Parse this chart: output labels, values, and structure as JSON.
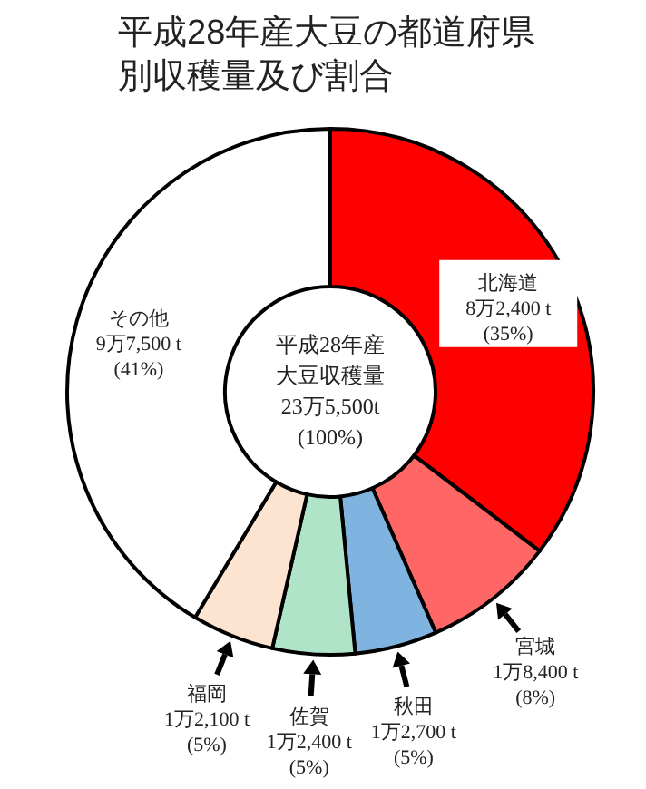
{
  "chart_data": {
    "type": "donut",
    "title": "平成28年産大豆の都道府県別収穫量及び割合",
    "categories": [
      "北海道",
      "宮城",
      "秋田",
      "佐賀",
      "福岡",
      "その他"
    ],
    "values": [
      35,
      8,
      5,
      5,
      5,
      41
    ],
    "colors": [
      "#ff0000",
      "#ff6666",
      "#7fb3e0",
      "#b0e4c8",
      "#fde4d0",
      "#ffffff"
    ],
    "value_labels": [
      "8万2,400 t\n(35%)",
      "1万8,400 t\n(8%)",
      "1万2,700 t\n(5%)",
      "1万2,400 t\n(5%)",
      "1万2,100 t\n(5%)",
      "9万7,500 t\n(41%)"
    ],
    "annotations": [
      "平成28年産大豆収穫量",
      "23万5,500t",
      "(100%)"
    ]
  }
}
